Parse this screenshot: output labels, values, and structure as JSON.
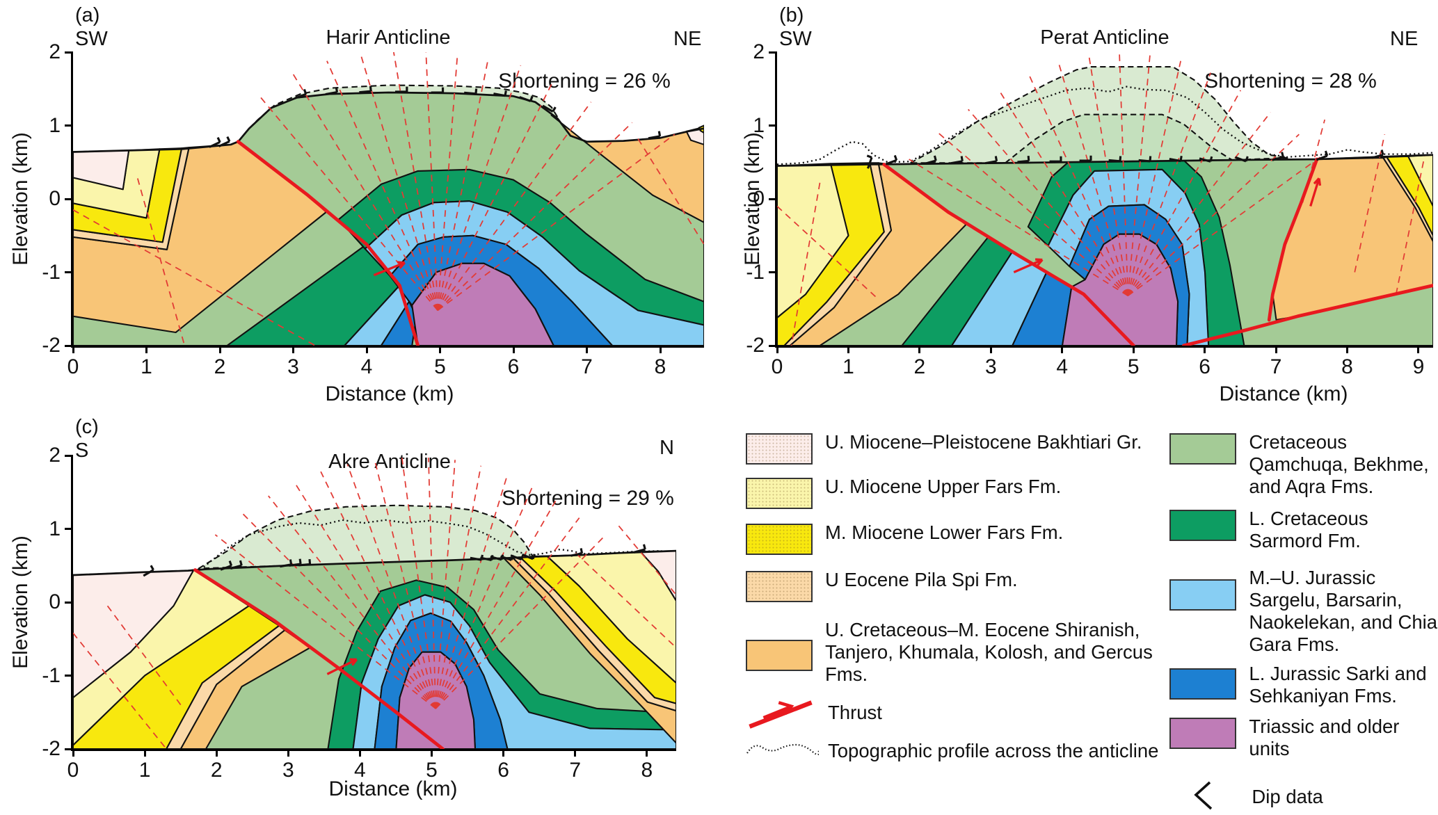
{
  "figure": {
    "panels": [
      {
        "key": "a",
        "letter": "(a)",
        "dir_left": "SW",
        "dir_right": "NE",
        "title": "Harir Anticline",
        "shortening": "Shortening = 26 %",
        "x_label": "Distance (km)",
        "y_label": "Elevation (km)",
        "x_ticks": [
          0,
          1,
          2,
          3,
          4,
          5,
          6,
          7,
          8
        ],
        "y_ticks": [
          2,
          1,
          0,
          -1,
          -2
        ]
      },
      {
        "key": "b",
        "letter": "(b)",
        "dir_left": "SW",
        "dir_right": "NE",
        "title": "Perat Anticline",
        "shortening": "Shortening = 28 %",
        "x_label": "Distance (km)",
        "y_label": "Elevation (km)",
        "x_ticks": [
          0,
          1,
          2,
          3,
          4,
          5,
          6,
          7,
          8,
          9
        ],
        "y_ticks": [
          2,
          1,
          0,
          -1,
          -2
        ]
      },
      {
        "key": "c",
        "letter": "(c)",
        "dir_left": "S",
        "dir_right": "N",
        "title": "Akre Anticline",
        "shortening": "Shortening = 29 %",
        "x_label": "Distance (km)",
        "y_label": "Elevation (km)",
        "x_ticks": [
          0,
          1,
          2,
          3,
          4,
          5,
          6,
          7,
          8
        ],
        "y_ticks": [
          2,
          1,
          0,
          -1,
          -2
        ]
      }
    ],
    "legend": {
      "units": [
        {
          "key": "bakhtiari",
          "label": "U. Miocene–Pleistocene Bakhtiari Gr."
        },
        {
          "key": "upper_fars",
          "label": "U. Miocene Upper Fars Fm."
        },
        {
          "key": "lower_fars",
          "label": "M. Miocene Lower Fars Fm."
        },
        {
          "key": "pila_spi",
          "label": "U Eocene Pila Spi Fm."
        },
        {
          "key": "shiranish",
          "label": "U. Cretaceous–M. Eocene Shiranish, Tanjero, Khumala, Kolosh, and Gercus Fms."
        },
        {
          "key": "qamchuqa",
          "label": "Cretaceous Qamchuqa, Bekhme, and Aqra Fms."
        },
        {
          "key": "sarmord",
          "label": "L. Cretaceous Sarmord Fm."
        },
        {
          "key": "sargelu",
          "label": "M.–U. Jurassic Sargelu, Barsarin, Naokelekan, and Chia Gara Fms."
        },
        {
          "key": "sarki",
          "label": "L. Jurassic Sarki and Sehkaniyan Fms."
        },
        {
          "key": "triassic",
          "label": "Triassic and older units"
        }
      ],
      "symbols": [
        {
          "key": "thrust",
          "label": "Thrust"
        },
        {
          "key": "dip",
          "label": "Dip data"
        },
        {
          "key": "topo",
          "label": "Topographic profile across the anticline"
        }
      ]
    },
    "unit_colors": {
      "bakhtiari": "#fcedea",
      "upper_fars": "#faf5ab",
      "lower_fars": "#f8e80e",
      "pila_spi": "#fbd9a8",
      "shiranish": "#f8c577",
      "qamchuqa": "#a4cb96",
      "sarmord": "#0d9d62",
      "sargelu": "#87cef3",
      "sarki": "#1d80d2",
      "triassic": "#bf7cb7",
      "qamchuqa_eroded": "#d9ead1",
      "sarmord_eroded": "#c4e0bd"
    },
    "line_colors": {
      "fault": "#e8191f",
      "dip_projection": "#e23b35",
      "outline": "#111111",
      "topography": "#111111"
    }
  }
}
